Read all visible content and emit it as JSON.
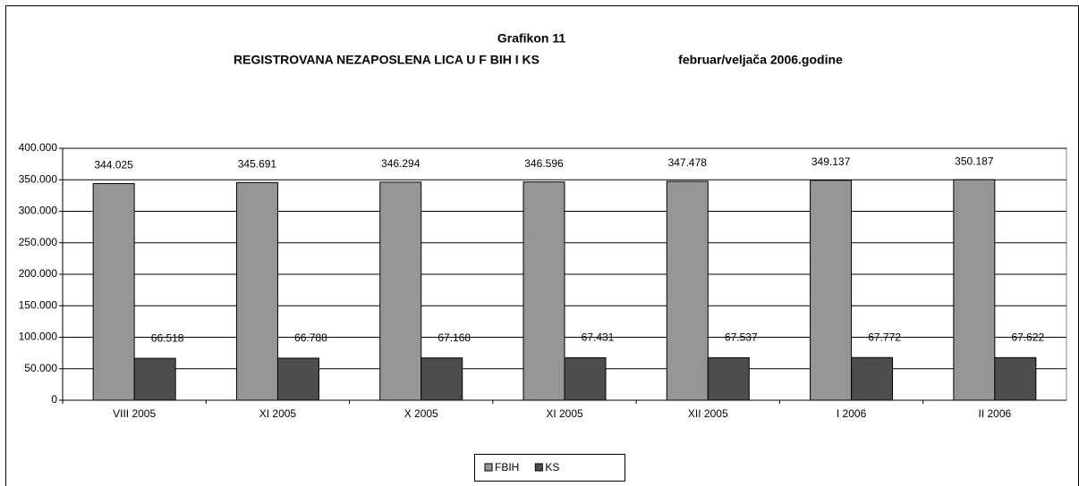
{
  "chart_data": {
    "type": "bar",
    "title": "Grafikon 11",
    "subtitle": "REGISTROVANA NEZAPOSLENA LICA U F BIH I KS",
    "annotation": "februar/veljača 2006.godine",
    "categories": [
      "VIII 2005",
      "XI 2005",
      "X 2005",
      "XI 2005",
      "XII 2005",
      "I 2006",
      "II 2006"
    ],
    "series": [
      {
        "name": "FBIH",
        "color": "#969696",
        "values": [
          344025,
          345691,
          346294,
          346596,
          347478,
          349137,
          350187
        ],
        "value_labels": [
          "344.025",
          "345.691",
          "346.294",
          "346.596",
          "347.478",
          "349.137",
          "350.187"
        ]
      },
      {
        "name": "KS",
        "color": "#4d4d4d",
        "values": [
          66518,
          66788,
          67168,
          67431,
          67537,
          67772,
          67622
        ],
        "value_labels": [
          "66.518",
          "66.788",
          "67.168",
          "67.431",
          "67.537",
          "67.772",
          "67.622"
        ]
      }
    ],
    "ylim": [
      0,
      400000
    ],
    "yticks": [
      0,
      {
        "value": 50000,
        "label": "50.000"
      },
      {
        "value": 100000,
        "label": "100.000"
      },
      {
        "value": 150000,
        "label": "150.000"
      },
      {
        "value": 200000,
        "label": "200.000"
      },
      {
        "value": 250000,
        "label": "250.000"
      },
      {
        "value": 300000,
        "label": "300.000"
      },
      {
        "value": 350000,
        "label": "350.000"
      },
      {
        "value": 400000,
        "label": "400.000"
      }
    ],
    "grid": true,
    "legend": "bottom"
  }
}
